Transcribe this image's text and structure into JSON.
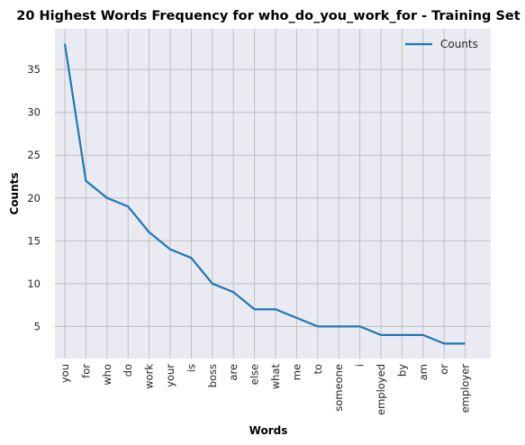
{
  "chart_data": {
    "type": "line",
    "title": "20 Highest Words Frequency for who_do_you_work_for - Training Set",
    "xlabel": "Words",
    "ylabel": "Counts",
    "categories": [
      "you",
      "for",
      "who",
      "do",
      "work",
      "your",
      "is",
      "boss",
      "are",
      "else",
      "what",
      "me",
      "to",
      "someone",
      "i",
      "employed",
      "by",
      "am",
      "or",
      "employer"
    ],
    "series": [
      {
        "name": "Counts",
        "values": [
          38,
          22,
          20,
          19,
          16,
          14,
          13,
          10,
          9,
          7,
          7,
          6,
          5,
          5,
          5,
          4,
          4,
          4,
          3,
          3
        ]
      }
    ],
    "yticks": [
      5,
      10,
      15,
      20,
      25,
      30,
      35
    ],
    "ylim": [
      1.25,
      39.75
    ],
    "grid": true,
    "legend": "top-right",
    "colors": {
      "line": "#1f77b4",
      "plot_background": "#eaeaf2",
      "grid": "#c0c0c0"
    }
  }
}
